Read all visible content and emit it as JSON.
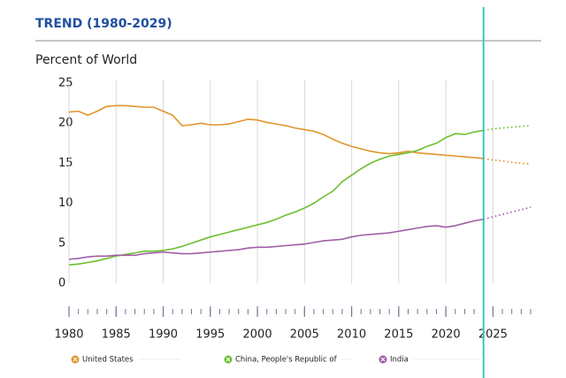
{
  "chart_data": {
    "type": "line",
    "title": "TREND (1980-2029)",
    "y_label": "Percent of World",
    "x": [
      1980,
      1981,
      1982,
      1983,
      1984,
      1985,
      1986,
      1987,
      1988,
      1989,
      1990,
      1991,
      1992,
      1993,
      1994,
      1995,
      1996,
      1997,
      1998,
      1999,
      2000,
      2001,
      2002,
      2003,
      2004,
      2005,
      2006,
      2007,
      2008,
      2009,
      2010,
      2011,
      2012,
      2013,
      2014,
      2015,
      2016,
      2017,
      2018,
      2019,
      2020,
      2021,
      2022,
      2023,
      2024,
      2025,
      2026,
      2027,
      2028,
      2029
    ],
    "series": [
      {
        "name": "United States",
        "color": "#e0962b",
        "values": [
          21.4,
          21.5,
          21.0,
          21.5,
          22.1,
          22.2,
          22.2,
          22.1,
          22.0,
          22.0,
          21.5,
          21.0,
          19.7,
          19.8,
          20.0,
          19.8,
          19.8,
          19.9,
          20.2,
          20.5,
          20.4,
          20.1,
          19.9,
          19.7,
          19.4,
          19.2,
          19.0,
          18.6,
          18.0,
          17.5,
          17.1,
          16.8,
          16.5,
          16.3,
          16.2,
          16.3,
          16.5,
          16.3,
          16.2,
          16.1,
          16.0,
          15.9,
          15.8,
          15.7,
          15.6,
          15.4,
          15.3,
          15.1,
          15.0,
          14.9
        ]
      },
      {
        "name": "China, People's Republic of",
        "color": "#6cbf2f",
        "values": [
          2.3,
          2.4,
          2.6,
          2.8,
          3.1,
          3.4,
          3.6,
          3.8,
          4.0,
          4.0,
          4.1,
          4.3,
          4.6,
          5.0,
          5.4,
          5.8,
          6.1,
          6.4,
          6.7,
          7.0,
          7.3,
          7.6,
          8.0,
          8.5,
          8.9,
          9.4,
          10.0,
          10.8,
          11.5,
          12.7,
          13.5,
          14.3,
          15.0,
          15.5,
          15.9,
          16.1,
          16.3,
          16.6,
          17.1,
          17.5,
          18.2,
          18.7,
          18.6,
          18.9,
          19.1,
          19.3,
          19.4,
          19.5,
          19.6,
          19.7
        ]
      },
      {
        "name": "India",
        "color": "#a05fa6",
        "values": [
          3.0,
          3.1,
          3.3,
          3.4,
          3.4,
          3.5,
          3.5,
          3.5,
          3.7,
          3.8,
          3.9,
          3.8,
          3.7,
          3.7,
          3.8,
          3.9,
          4.0,
          4.1,
          4.2,
          4.4,
          4.5,
          4.5,
          4.6,
          4.7,
          4.8,
          4.9,
          5.1,
          5.3,
          5.4,
          5.5,
          5.8,
          6.0,
          6.1,
          6.2,
          6.3,
          6.5,
          6.7,
          6.9,
          7.1,
          7.2,
          7.0,
          7.2,
          7.5,
          7.8,
          8.0,
          8.3,
          8.6,
          8.9,
          9.2,
          9.5
        ]
      }
    ],
    "forecast_from": 2024,
    "marker_x": 2024,
    "marker_color": "#3cc6c0",
    "xlim": [
      1980,
      2029
    ],
    "xticks": [
      1980,
      1985,
      1990,
      1995,
      2000,
      2005,
      2010,
      2015,
      2020,
      2025
    ],
    "ylim": [
      0,
      25
    ],
    "yticks": [
      0,
      5,
      10,
      15,
      20,
      25
    ],
    "grid": "x"
  }
}
